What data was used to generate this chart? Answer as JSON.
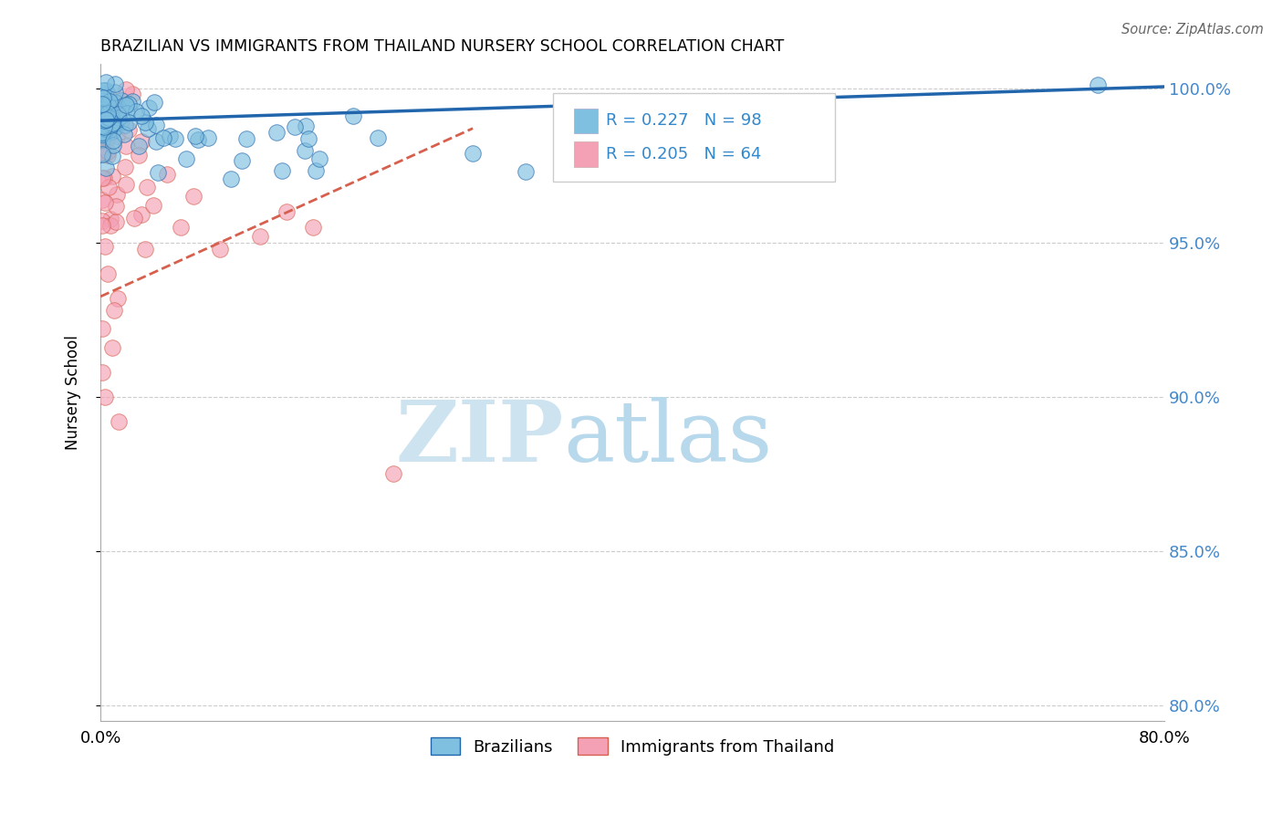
{
  "title": "BRAZILIAN VS IMMIGRANTS FROM THAILAND NURSERY SCHOOL CORRELATION CHART",
  "source": "Source: ZipAtlas.com",
  "ylabel": "Nursery School",
  "xlim": [
    0.0,
    0.8
  ],
  "ylim": [
    0.795,
    1.008
  ],
  "ytick_vals": [
    0.8,
    0.85,
    0.9,
    0.95,
    1.0
  ],
  "ytick_labels": [
    "80.0%",
    "85.0%",
    "90.0%",
    "95.0%",
    "100.0%"
  ],
  "xtick_vals": [
    0.0,
    0.1,
    0.2,
    0.3,
    0.4,
    0.5,
    0.6,
    0.7,
    0.8
  ],
  "xtick_labels": [
    "0.0%",
    "",
    "",
    "",
    "",
    "",
    "",
    "",
    "80.0%"
  ],
  "legend_label1": "Brazilians",
  "legend_label2": "Immigrants from Thailand",
  "r1": 0.227,
  "n1": 98,
  "r2": 0.205,
  "n2": 64,
  "scatter_blue_color": "#7fbfdf",
  "scatter_pink_color": "#f4a0b5",
  "line_blue_color": "#2166ac",
  "line_pink_color": "#d6604d",
  "background_color": "#ffffff",
  "blue_line_x": [
    0.0,
    0.8
  ],
  "blue_line_y": [
    0.9895,
    1.0005
  ],
  "pink_line_x": [
    0.0,
    0.28
  ],
  "pink_line_y": [
    0.9325,
    0.987
  ]
}
